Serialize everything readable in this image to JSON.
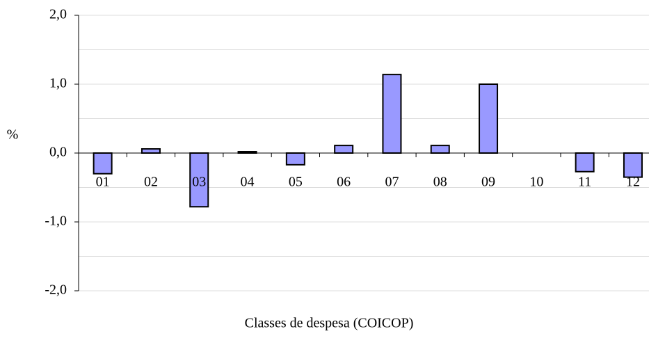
{
  "chart_data": {
    "type": "bar",
    "y_label": "%",
    "x_label": "Classes de despesa (COICOP)",
    "categories": [
      "01",
      "02",
      "03",
      "04",
      "05",
      "06",
      "07",
      "08",
      "09",
      "10",
      "11",
      "12"
    ],
    "values": [
      -0.3,
      0.06,
      -0.78,
      0.02,
      -0.17,
      0.11,
      1.14,
      0.11,
      1.0,
      0,
      -0.27,
      -0.35
    ],
    "color": "#9999ff",
    "ylim": [
      -2,
      2
    ],
    "yticks": [
      {
        "value": -2,
        "label": "-2,0"
      },
      {
        "value": -1,
        "label": "-1,0"
      },
      {
        "value": 0,
        "label": "0,0"
      },
      {
        "value": 1,
        "label": "1,0"
      },
      {
        "value": 2,
        "label": "2,0"
      }
    ],
    "grid": true,
    "minor_grid": true
  }
}
